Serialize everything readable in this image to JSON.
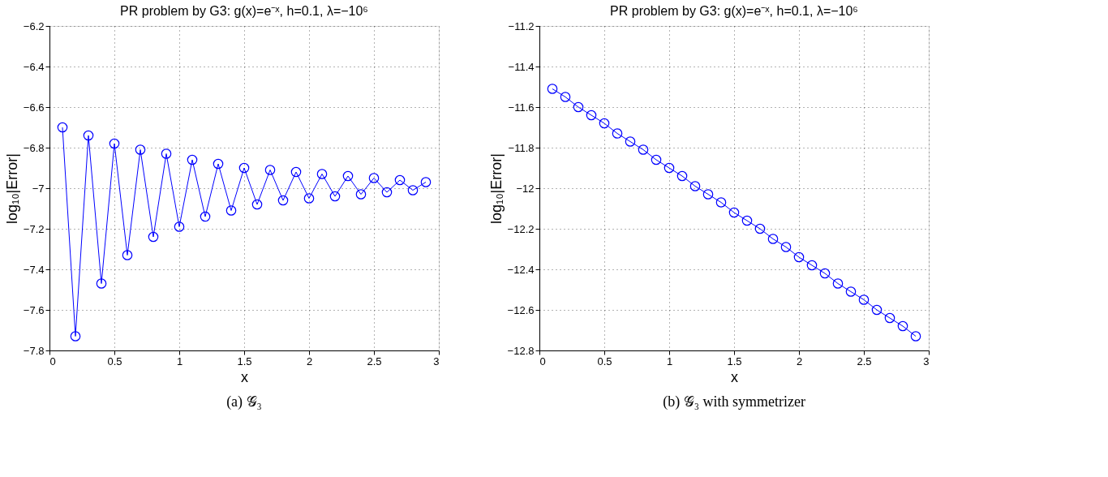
{
  "chart_data": [
    {
      "type": "line",
      "title": "PR problem by G3: g(x)=e⁻ˣ, h=0.1, λ=−10⁶",
      "xlabel": "x",
      "ylabel": "log₁₀|Error|",
      "annotations": [
        "(a) 𝒢₃"
      ],
      "x": [
        0.1,
        0.2,
        0.3,
        0.4,
        0.5,
        0.6,
        0.7,
        0.8,
        0.9,
        1.0,
        1.1,
        1.2,
        1.3,
        1.4,
        1.5,
        1.6,
        1.7,
        1.8,
        1.9,
        2.0,
        2.1,
        2.2,
        2.3,
        2.4,
        2.5,
        2.6,
        2.7,
        2.8,
        2.9
      ],
      "series": [
        {
          "color": "#0000ff",
          "values": [
            -6.7,
            -7.73,
            -6.74,
            -7.47,
            -6.78,
            -7.33,
            -6.81,
            -7.24,
            -6.83,
            -7.19,
            -6.86,
            -7.14,
            -6.88,
            -7.11,
            -6.9,
            -7.08,
            -6.91,
            -7.06,
            -6.92,
            -7.05,
            -6.93,
            -7.04,
            -6.94,
            -7.03,
            -6.95,
            -7.02,
            -6.96,
            -7.01,
            -6.97
          ]
        }
      ],
      "xlim": [
        0,
        3
      ],
      "xticks": [
        0,
        0.5,
        1,
        1.5,
        2,
        2.5,
        3
      ],
      "ylim": [
        -7.8,
        -6.2
      ],
      "yticks": [
        -7.8,
        -7.6,
        -7.4,
        -7.2,
        -7,
        -6.8,
        -6.6,
        -6.4,
        -6.2
      ],
      "grid": true,
      "marker": "circle",
      "line_style": "solid"
    },
    {
      "type": "line",
      "title": "PR problem by G3: g(x)=e⁻ˣ, h=0.1, λ=−10⁶",
      "xlabel": "x",
      "ylabel": "log₁₀|Error|",
      "annotations": [
        "(b) 𝒢₃ with symmetrizer"
      ],
      "x": [
        0.1,
        0.2,
        0.3,
        0.4,
        0.5,
        0.6,
        0.7,
        0.8,
        0.9,
        1.0,
        1.1,
        1.2,
        1.3,
        1.4,
        1.5,
        1.6,
        1.7,
        1.8,
        1.9,
        2.0,
        2.1,
        2.2,
        2.3,
        2.4,
        2.5,
        2.6,
        2.7,
        2.8,
        2.9
      ],
      "series": [
        {
          "color": "#0000ff",
          "values": [
            -11.51,
            -11.55,
            -11.6,
            -11.64,
            -11.68,
            -11.73,
            -11.77,
            -11.81,
            -11.86,
            -11.9,
            -11.94,
            -11.99,
            -12.03,
            -12.07,
            -12.12,
            -12.16,
            -12.2,
            -12.25,
            -12.29,
            -12.34,
            -12.38,
            -12.42,
            -12.47,
            -12.51,
            -12.55,
            -12.6,
            -12.64,
            -12.68,
            -12.73
          ]
        }
      ],
      "xlim": [
        0,
        3
      ],
      "xticks": [
        0,
        0.5,
        1,
        1.5,
        2,
        2.5,
        3
      ],
      "ylim": [
        -12.8,
        -11.2
      ],
      "yticks": [
        -12.8,
        -12.6,
        -12.4,
        -12.2,
        -12,
        -11.8,
        -11.6,
        -11.4,
        -11.2
      ],
      "grid": true,
      "marker": "circle",
      "line_style": "solid"
    }
  ]
}
